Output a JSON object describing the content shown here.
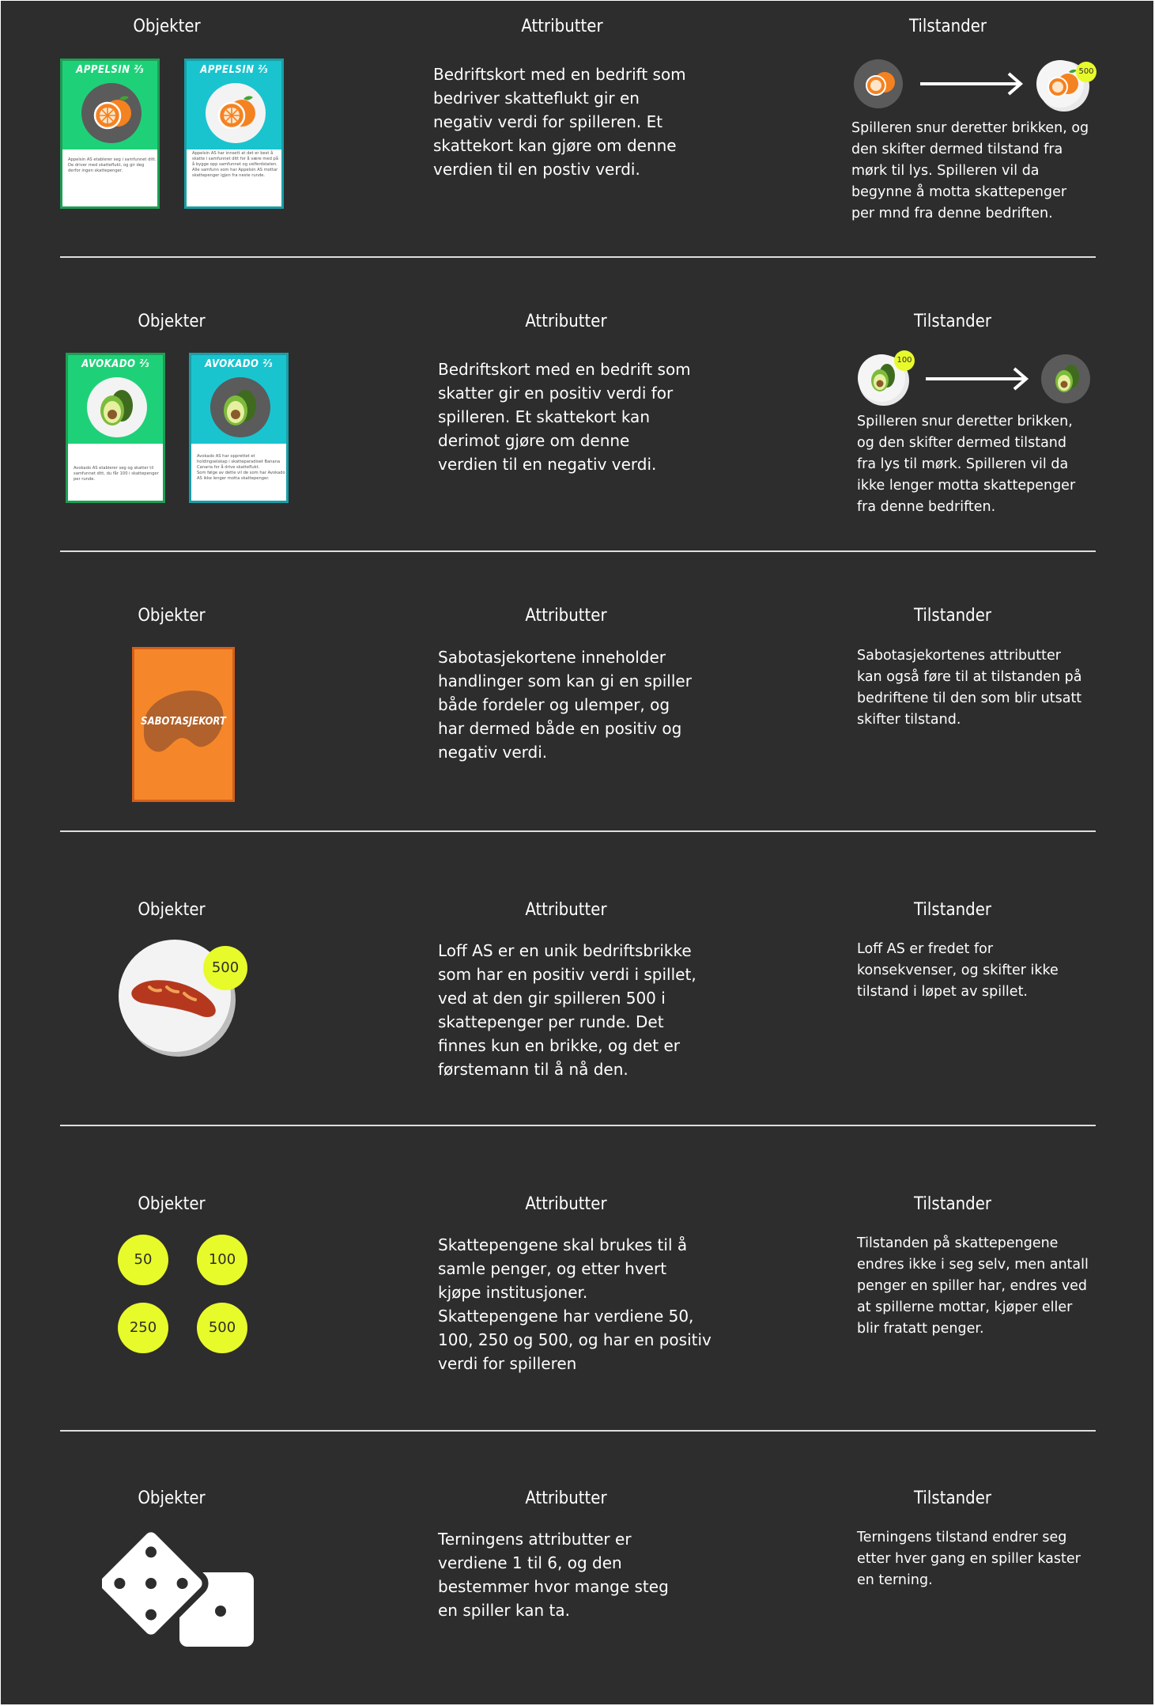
{
  "headings": {
    "objects": "Objekter",
    "attributes": "Attributter",
    "states": "Tilstander"
  },
  "sections": [
    {
      "cards": [
        {
          "title": "APPELSIN",
          "fraction": "⅔",
          "text": "Appelsin AS etablerer seg i samfunnet ditt. De driver med skatteflukt, og gir deg derfor ingen skattepenger."
        },
        {
          "title": "APPELSIN",
          "fraction": "⅔",
          "text": "Appelsin AS har innsett at det er best å skatte i samfunnet ditt for å være med på å bygge opp samfunnet og velferdstaten.\nAlle samfunn som har Appelsin AS mottar skattepenger igjen fra neste runde."
        }
      ],
      "attributes": "Bedriftskort med en bedrift som\nbedriver skatteflukt gir en\nnegativ verdi for spilleren. Et\nskattekort kan gjøre om denne\nverdien til en postiv verdi.",
      "badge": "500",
      "states": "Spilleren snur deretter brikken, og\nden skifter dermed tilstand fra\nmørk til lys. Spilleren vil da\nbegynne å motta skattepenger\nper mnd fra denne bedriften."
    },
    {
      "cards": [
        {
          "title": "AVOKADO",
          "fraction": "⅔",
          "text": "Avokado AS etablerer seg og skatter til samfunnet ditt, du får 100 i skattepenger per runde."
        },
        {
          "title": "AVOKADO",
          "fraction": "⅔",
          "text": "Avokado AS har opprettet et holdingselskap i skatteparadiset Banana Canaria for å drive skatteflukt.\nSom følge av dette vil de som har Avokado AS ikke lenger motta skattepenger."
        }
      ],
      "attributes": "Bedriftskort med en bedrift som\nskatter gir en positiv verdi for\nspilleren. Et skattekort kan\nderimot gjøre om denne\nverdien til en negativ verdi.",
      "badge": "100",
      "states": "Spilleren snur deretter brikken,\nog den skifter dermed tilstand\nfra lys til mørk. Spilleren vil da\nikke lenger motta skattepenger\nfra denne bedriften."
    },
    {
      "card_title": "SABOTASJEKORT",
      "attributes": "Sabotasjekortene inneholder\nhandlinger som kan gi en spiller\nbåde fordeler og ulemper, og\nhar dermed både en positiv og\nnegativ verdi.",
      "states": "Sabotasjekortenes attributter\nkan også føre til at tilstanden på\nbedriftene til den som blir utsatt\nskifter tilstand."
    },
    {
      "badge": "500",
      "attributes": "Loff AS er en unik bedriftsbrikke\nsom har en positiv verdi i spillet,\nved at den gir spilleren 500 i\nskattepenger per runde. Det\nfinnes kun en brikke, og det er\nførstemann til å nå den.",
      "states": "Loff AS er fredet for\nkonsekvenser, og skifter ikke\ntilstand i løpet av spillet."
    },
    {
      "coins": [
        "50",
        "100",
        "250",
        "500"
      ],
      "attributes": "Skattepengene skal brukes til å\nsamle penger, og etter hvert\nkjøpe institusjoner.\nSkattepengene har verdiene 50,\n100, 250 og 500, og har en positiv\nverdi for spilleren",
      "states": "Tilstanden på skattepengene\nendres ikke i seg selv, men antall\npenger en spiller har, endres ved\nat spillerne mottar, kjøper eller\nblir fratatt penger."
    },
    {
      "attributes": "Terningens attributter er\nverdiene 1 til 6, og den\nbestemmer hvor mange steg\nen spiller kan ta.",
      "states": "Terningens tilstand endrer seg\netter hver gang en spiller kaster\nen terning."
    }
  ],
  "colors": {
    "background": "#2d2d2d",
    "green_card": "#1ed178",
    "teal_card": "#19c4cf",
    "orange_card": "#f5872a",
    "coin": "#e8fb2a"
  }
}
